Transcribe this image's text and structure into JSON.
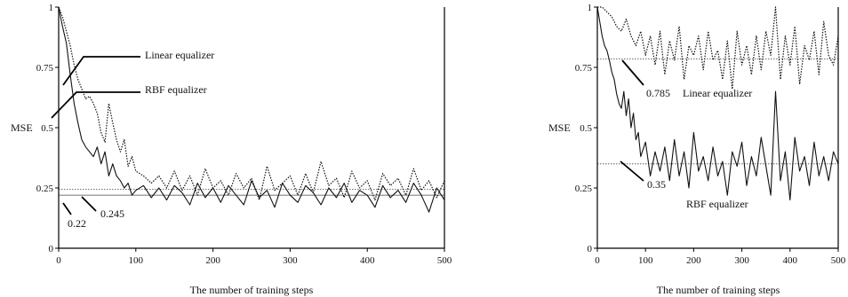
{
  "chart_data": [
    {
      "type": "line",
      "xlabel": "The number of training steps",
      "ylabel": "MSE",
      "xlim": [
        0,
        500
      ],
      "ylim": [
        0,
        1
      ],
      "xticks": [
        "0",
        "100",
        "200",
        "300",
        "400",
        "500"
      ],
      "yticks": [
        "0",
        "0.25",
        "0.5",
        "0.75",
        "1"
      ],
      "grid": false,
      "annotations": [
        {
          "text": "Linear equalizer"
        },
        {
          "text": "RBF equalizer"
        },
        {
          "text": "0.22"
        },
        {
          "text": "0.245"
        }
      ],
      "reference_lines": [
        0.22,
        0.245
      ],
      "series": [
        {
          "name": "Linear equalizer",
          "style": "dotted",
          "x": [
            0,
            5,
            10,
            15,
            20,
            25,
            30,
            35,
            40,
            45,
            50,
            55,
            60,
            65,
            70,
            75,
            80,
            85,
            90,
            95,
            100,
            110,
            120,
            130,
            140,
            150,
            160,
            170,
            180,
            190,
            200,
            210,
            220,
            230,
            240,
            250,
            260,
            270,
            280,
            290,
            300,
            310,
            320,
            330,
            340,
            350,
            360,
            370,
            380,
            390,
            400,
            410,
            420,
            430,
            440,
            450,
            460,
            470,
            480,
            490,
            500
          ],
          "values": [
            1.0,
            0.96,
            0.9,
            0.84,
            0.76,
            0.7,
            0.66,
            0.62,
            0.63,
            0.6,
            0.56,
            0.48,
            0.44,
            0.6,
            0.52,
            0.45,
            0.4,
            0.45,
            0.34,
            0.38,
            0.32,
            0.3,
            0.27,
            0.3,
            0.25,
            0.32,
            0.24,
            0.3,
            0.22,
            0.33,
            0.25,
            0.28,
            0.22,
            0.31,
            0.25,
            0.29,
            0.2,
            0.34,
            0.24,
            0.27,
            0.3,
            0.22,
            0.31,
            0.23,
            0.36,
            0.26,
            0.29,
            0.21,
            0.32,
            0.25,
            0.28,
            0.2,
            0.31,
            0.26,
            0.29,
            0.22,
            0.33,
            0.24,
            0.28,
            0.21,
            0.28
          ]
        },
        {
          "name": "RBF equalizer",
          "style": "solid",
          "x": [
            0,
            5,
            10,
            15,
            20,
            25,
            30,
            35,
            40,
            45,
            50,
            55,
            60,
            65,
            70,
            75,
            80,
            85,
            90,
            95,
            100,
            110,
            120,
            130,
            140,
            150,
            160,
            170,
            180,
            190,
            200,
            210,
            220,
            230,
            240,
            250,
            260,
            270,
            280,
            290,
            300,
            310,
            320,
            330,
            340,
            350,
            360,
            370,
            380,
            390,
            400,
            410,
            420,
            430,
            440,
            450,
            460,
            470,
            480,
            490,
            500
          ],
          "values": [
            1.0,
            0.92,
            0.85,
            0.72,
            0.6,
            0.52,
            0.45,
            0.42,
            0.4,
            0.38,
            0.42,
            0.35,
            0.4,
            0.3,
            0.35,
            0.3,
            0.28,
            0.25,
            0.27,
            0.22,
            0.24,
            0.26,
            0.21,
            0.25,
            0.2,
            0.26,
            0.23,
            0.18,
            0.27,
            0.21,
            0.25,
            0.19,
            0.26,
            0.22,
            0.18,
            0.28,
            0.21,
            0.24,
            0.17,
            0.27,
            0.22,
            0.19,
            0.26,
            0.23,
            0.18,
            0.25,
            0.21,
            0.27,
            0.19,
            0.24,
            0.22,
            0.17,
            0.26,
            0.21,
            0.24,
            0.19,
            0.27,
            0.22,
            0.15,
            0.25,
            0.2
          ]
        }
      ]
    },
    {
      "type": "line",
      "xlabel": "The number of training steps",
      "ylabel": "MSE",
      "xlim": [
        0,
        500
      ],
      "ylim": [
        0,
        1
      ],
      "xticks": [
        "0",
        "100",
        "200",
        "300",
        "400",
        "500"
      ],
      "yticks": [
        "0",
        "0.25",
        "0.5",
        "0.75",
        "1"
      ],
      "grid": false,
      "annotations": [
        {
          "text": "0.785"
        },
        {
          "text": "Linear equalizer"
        },
        {
          "text": "0.35"
        },
        {
          "text": "RBF equalizer"
        }
      ],
      "reference_lines": [
        0.785,
        0.35
      ],
      "series": [
        {
          "name": "Linear equalizer",
          "style": "dotted",
          "x": [
            0,
            10,
            20,
            30,
            40,
            50,
            60,
            70,
            80,
            90,
            100,
            110,
            120,
            130,
            140,
            150,
            160,
            170,
            180,
            190,
            200,
            210,
            220,
            230,
            240,
            250,
            260,
            270,
            280,
            290,
            300,
            310,
            320,
            330,
            340,
            350,
            360,
            370,
            380,
            390,
            400,
            410,
            420,
            430,
            440,
            450,
            460,
            470,
            480,
            490,
            500
          ],
          "values": [
            1.0,
            1.0,
            0.98,
            0.96,
            0.92,
            0.9,
            0.95,
            0.88,
            0.84,
            0.9,
            0.8,
            0.88,
            0.76,
            0.9,
            0.72,
            0.86,
            0.78,
            0.92,
            0.7,
            0.84,
            0.8,
            0.88,
            0.74,
            0.9,
            0.78,
            0.82,
            0.7,
            0.86,
            0.66,
            0.9,
            0.76,
            0.84,
            0.72,
            0.88,
            0.74,
            0.9,
            0.8,
            1.0,
            0.7,
            0.88,
            0.76,
            0.92,
            0.68,
            0.84,
            0.78,
            0.9,
            0.72,
            0.94,
            0.8,
            0.76,
            0.88
          ]
        },
        {
          "name": "RBF equalizer",
          "style": "solid",
          "x": [
            0,
            5,
            10,
            15,
            20,
            25,
            30,
            35,
            40,
            45,
            50,
            55,
            60,
            65,
            70,
            75,
            80,
            85,
            90,
            100,
            110,
            120,
            130,
            140,
            150,
            160,
            170,
            180,
            190,
            200,
            210,
            220,
            230,
            240,
            250,
            260,
            270,
            280,
            290,
            300,
            310,
            320,
            330,
            340,
            350,
            360,
            370,
            380,
            390,
            400,
            410,
            420,
            430,
            440,
            450,
            460,
            470,
            480,
            490,
            500
          ],
          "values": [
            1.0,
            0.94,
            0.88,
            0.84,
            0.82,
            0.78,
            0.73,
            0.7,
            0.64,
            0.6,
            0.58,
            0.65,
            0.55,
            0.62,
            0.5,
            0.56,
            0.45,
            0.48,
            0.38,
            0.44,
            0.3,
            0.4,
            0.32,
            0.42,
            0.28,
            0.45,
            0.3,
            0.4,
            0.25,
            0.48,
            0.32,
            0.38,
            0.28,
            0.42,
            0.3,
            0.36,
            0.22,
            0.4,
            0.34,
            0.44,
            0.26,
            0.38,
            0.3,
            0.46,
            0.34,
            0.22,
            0.65,
            0.28,
            0.4,
            0.2,
            0.46,
            0.32,
            0.38,
            0.26,
            0.44,
            0.3,
            0.38,
            0.28,
            0.4,
            0.35
          ]
        }
      ]
    }
  ]
}
